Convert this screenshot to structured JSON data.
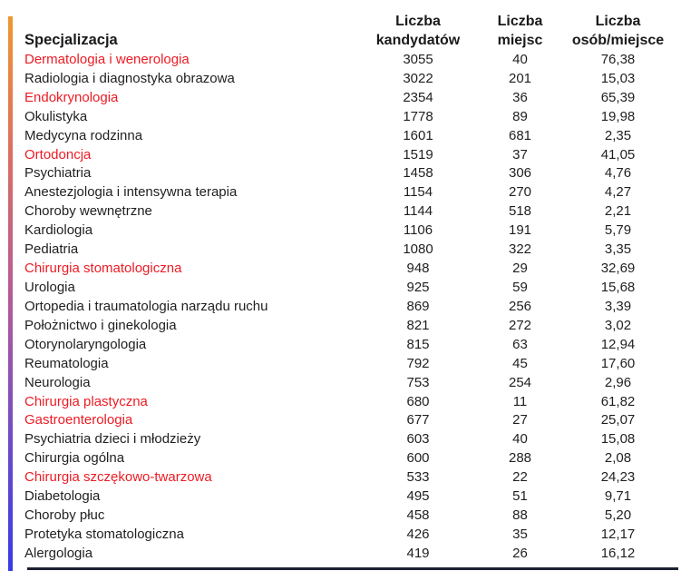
{
  "colors": {
    "highlight_red": "#EC1C24",
    "text": "#1f1f1f",
    "accent_bar_top": "#ED9733",
    "accent_bar_upper_mid": "#D96F63",
    "accent_bar_middle": "#B75B96",
    "accent_bar_lower_mid": "#6A4BC9",
    "accent_bar_bottom": "#383BE4",
    "bottom_rule": "#1B2130"
  },
  "table": {
    "header": {
      "col1": {
        "line1": "",
        "line2": "Specjalizacja"
      },
      "col2": {
        "line1": "Liczba",
        "line2": "kandydatów"
      },
      "col3": {
        "line1": "Liczba",
        "line2": "miejsc"
      },
      "col4": {
        "line1": "Liczba",
        "line2": "osób/miejsce"
      }
    },
    "rows": [
      {
        "name": "Dermatologia i wenerologia",
        "candidates": "3055",
        "places": "40",
        "ratio": "76,38",
        "highlighted": true
      },
      {
        "name": "Radiologia i diagnostyka obrazowa",
        "candidates": "3022",
        "places": "201",
        "ratio": "15,03",
        "highlighted": false
      },
      {
        "name": "Endokrynologia",
        "candidates": "2354",
        "places": "36",
        "ratio": "65,39",
        "highlighted": true
      },
      {
        "name": "Okulistyka",
        "candidates": "1778",
        "places": "89",
        "ratio": "19,98",
        "highlighted": false
      },
      {
        "name": "Medycyna rodzinna",
        "candidates": "1601",
        "places": "681",
        "ratio": "2,35",
        "highlighted": false
      },
      {
        "name": "Ortodoncja",
        "candidates": "1519",
        "places": "37",
        "ratio": "41,05",
        "highlighted": true
      },
      {
        "name": "Psychiatria",
        "candidates": "1458",
        "places": "306",
        "ratio": "4,76",
        "highlighted": false
      },
      {
        "name": "Anestezjologia i intensywna terapia",
        "candidates": "1154",
        "places": "270",
        "ratio": "4,27",
        "highlighted": false
      },
      {
        "name": "Choroby wewnętrzne",
        "candidates": "1144",
        "places": "518",
        "ratio": "2,21",
        "highlighted": false
      },
      {
        "name": "Kardiologia",
        "candidates": "1106",
        "places": "191",
        "ratio": "5,79",
        "highlighted": false
      },
      {
        "name": "Pediatria",
        "candidates": "1080",
        "places": "322",
        "ratio": "3,35",
        "highlighted": false
      },
      {
        "name": "Chirurgia stomatologiczna",
        "candidates": "948",
        "places": "29",
        "ratio": "32,69",
        "highlighted": true
      },
      {
        "name": "Urologia",
        "candidates": "925",
        "places": "59",
        "ratio": "15,68",
        "highlighted": false
      },
      {
        "name": "Ortopedia i traumatologia narządu ruchu",
        "candidates": "869",
        "places": "256",
        "ratio": "3,39",
        "highlighted": false
      },
      {
        "name": "Położnictwo i ginekologia",
        "candidates": "821",
        "places": "272",
        "ratio": "3,02",
        "highlighted": false
      },
      {
        "name": "Otorynolaryngologia",
        "candidates": "815",
        "places": "63",
        "ratio": "12,94",
        "highlighted": false
      },
      {
        "name": "Reumatologia",
        "candidates": "792",
        "places": "45",
        "ratio": "17,60",
        "highlighted": false
      },
      {
        "name": "Neurologia",
        "candidates": "753",
        "places": "254",
        "ratio": "2,96",
        "highlighted": false
      },
      {
        "name": "Chirurgia plastyczna",
        "candidates": "680",
        "places": "11",
        "ratio": "61,82",
        "highlighted": true
      },
      {
        "name": "Gastroenterologia",
        "candidates": "677",
        "places": "27",
        "ratio": "25,07",
        "highlighted": true
      },
      {
        "name": "Psychiatria dzieci i młodzieży",
        "candidates": "603",
        "places": "40",
        "ratio": "15,08",
        "highlighted": false
      },
      {
        "name": "Chirurgia ogólna",
        "candidates": "600",
        "places": "288",
        "ratio": "2,08",
        "highlighted": false
      },
      {
        "name": "Chirurgia szczękowo-twarzowa",
        "candidates": "533",
        "places": "22",
        "ratio": "24,23",
        "highlighted": true
      },
      {
        "name": "Diabetologia",
        "candidates": "495",
        "places": "51",
        "ratio": "9,71",
        "highlighted": false
      },
      {
        "name": "Choroby płuc",
        "candidates": "458",
        "places": "88",
        "ratio": "5,20",
        "highlighted": false
      },
      {
        "name": "Protetyka stomatologiczna",
        "candidates": "426",
        "places": "35",
        "ratio": "12,17",
        "highlighted": false
      },
      {
        "name": "Alergologia",
        "candidates": "419",
        "places": "26",
        "ratio": "16,12",
        "highlighted": false
      }
    ]
  }
}
